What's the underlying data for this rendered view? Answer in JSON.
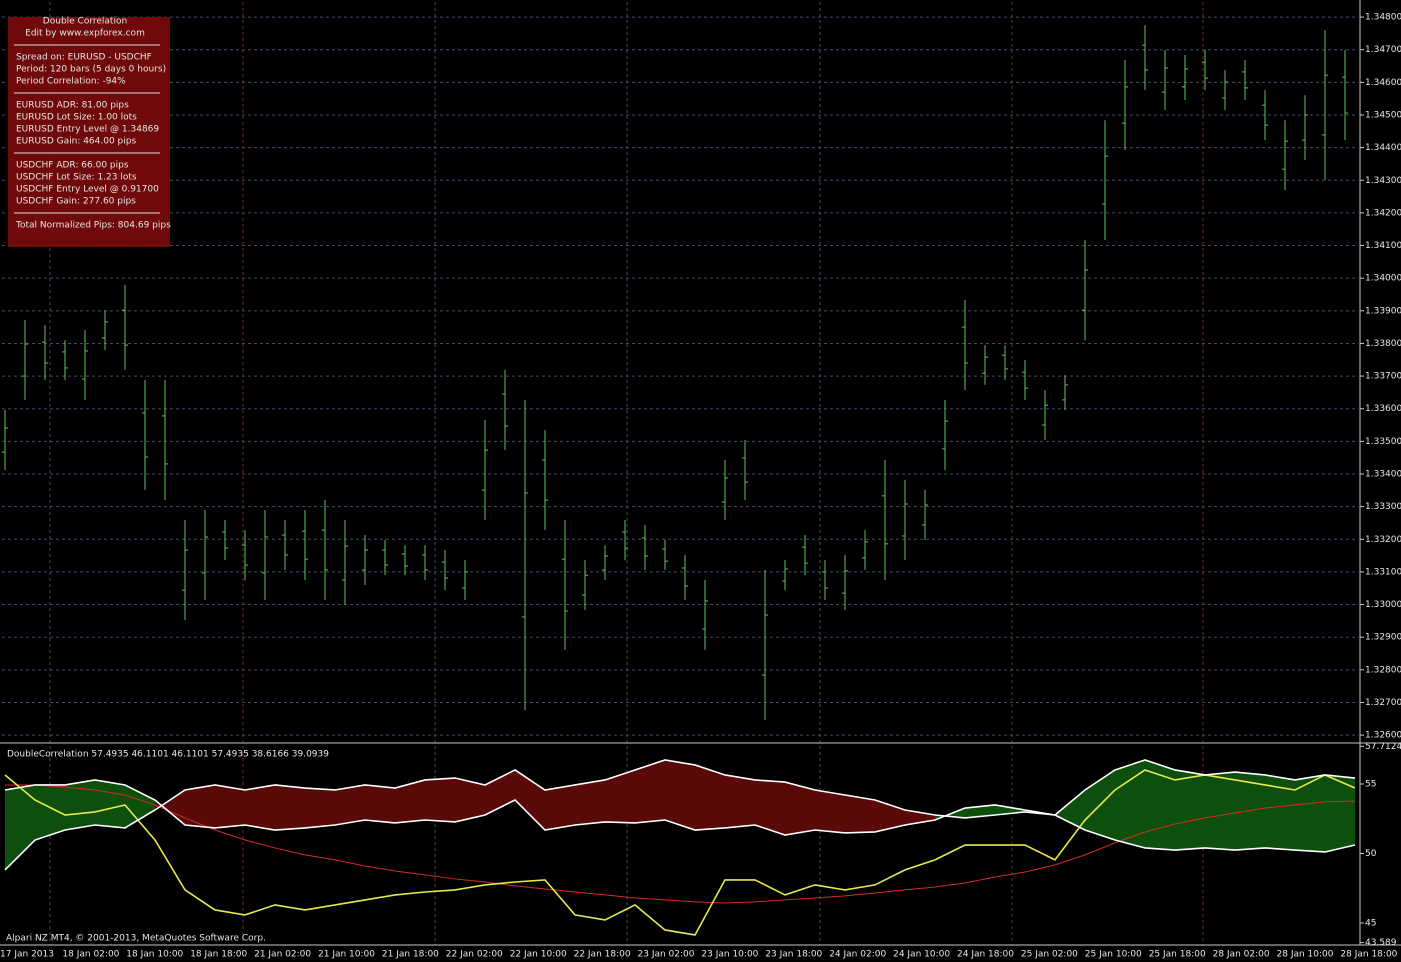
{
  "info_panel": {
    "title": "Double Correlation",
    "subtitle": "Edit by www.expforex.com",
    "sections": [
      [
        "Spread on: EURUSD - USDCHF",
        "Period: 120 bars (5 days 0 hours)",
        "Period Correlation: -94%"
      ],
      [
        "EURUSD ADR: 81.00   pips",
        "EURUSD Lot Size: 1.00 lots",
        "EURUSD Entry Level @ 1.34869",
        "EURUSD Gain: 464.00 pips"
      ],
      [
        "USDCHF ADR: 66.00   pips",
        "USDCHF Lot Size: 1.23 lots",
        "USDCHF Entry Level @ 0.91700",
        "USDCHF Gain: 277.60 pips"
      ],
      [
        "Total Normalized Pips: 804.69 pips"
      ]
    ]
  },
  "footer": "Alpari NZ MT4, © 2001-2013, MetaQuotes Software Corp.",
  "chart_data": [
    {
      "type": "ohlc",
      "color": "#5fc35f",
      "grid": true,
      "ylim": [
        1.32585,
        1.34837
      ],
      "yticks": [
        {
          "value": 1.348,
          "label": "1.34800"
        },
        {
          "value": 1.347,
          "label": "1.34700"
        },
        {
          "value": 1.346,
          "label": "1.34600"
        },
        {
          "value": 1.345,
          "label": "1.34500"
        },
        {
          "value": 1.344,
          "label": "1.34400"
        },
        {
          "value": 1.343,
          "label": "1.34300"
        },
        {
          "value": 1.342,
          "label": "1.34200"
        },
        {
          "value": 1.341,
          "label": "1.34100"
        },
        {
          "value": 1.34,
          "label": "1.34000"
        },
        {
          "value": 1.339,
          "label": "1.33900"
        },
        {
          "value": 1.338,
          "label": "1.33800"
        },
        {
          "value": 1.337,
          "label": "1.33700"
        },
        {
          "value": 1.336,
          "label": "1.33600"
        },
        {
          "value": 1.335,
          "label": "1.33500"
        },
        {
          "value": 1.334,
          "label": "1.33400"
        },
        {
          "value": 1.333,
          "label": "1.33300"
        },
        {
          "value": 1.332,
          "label": "1.33200"
        },
        {
          "value": 1.331,
          "label": "1.33100"
        },
        {
          "value": 1.33,
          "label": "1.33000"
        },
        {
          "value": 1.329,
          "label": "1.32900"
        },
        {
          "value": 1.328,
          "label": "1.32800"
        },
        {
          "value": 1.327,
          "label": "1.32700"
        },
        {
          "value": 1.326,
          "label": "1.32600"
        }
      ],
      "open": [
        1.33467,
        1.337,
        1.33804,
        1.33774,
        1.33691,
        1.33817,
        1.33902,
        1.33587,
        1.33578,
        1.33044,
        1.33097,
        1.33222,
        1.33182,
        1.33097,
        1.33213,
        1.33225,
        1.33228,
        1.33075,
        1.33106,
        1.33167,
        1.33155,
        1.33152,
        1.3313,
        1.33051,
        1.33351,
        1.33645,
        1.32962,
        1.33443,
        1.33139,
        1.33029,
        1.33106,
        1.33222,
        1.33204,
        1.3317,
        1.33112,
        1.32925,
        1.33314,
        1.33449,
        1.32784,
        1.33072,
        1.33176,
        1.331,
        1.33035,
        1.33143,
        1.33333,
        1.3321,
        1.33244,
        1.33477,
        1.3385,
        1.33709,
        1.33764,
        1.33712,
        1.3355,
        1.33627,
        1.33902,
        1.34227,
        1.34475,
        1.34714,
        1.3457,
        1.34586,
        1.34662,
        1.34552,
        1.34632,
        1.3453,
        1.34334,
        1.34423,
        1.34439,
        1.34616
      ],
      "high": [
        1.33596,
        1.33872,
        1.33856,
        1.3381,
        1.33841,
        1.33902,
        1.33979,
        1.33688,
        1.33688,
        1.33259,
        1.3329,
        1.33259,
        1.33228,
        1.3329,
        1.33259,
        1.3329,
        1.3332,
        1.33259,
        1.33213,
        1.33198,
        1.33182,
        1.33182,
        1.33167,
        1.33136,
        1.33565,
        1.33719,
        1.33627,
        1.33535,
        1.33259,
        1.33136,
        1.33182,
        1.33259,
        1.33244,
        1.33198,
        1.33152,
        1.33075,
        1.33443,
        1.33504,
        1.33106,
        1.33136,
        1.33213,
        1.33136,
        1.33152,
        1.33228,
        1.33443,
        1.33382,
        1.33351,
        1.33627,
        1.33933,
        1.33795,
        1.33795,
        1.33749,
        1.33657,
        1.33703,
        1.34117,
        1.34484,
        1.34668,
        1.34775,
        1.34699,
        1.34684,
        1.34699,
        1.34638,
        1.34668,
        1.34576,
        1.34484,
        1.34561,
        1.3476,
        1.34699
      ],
      "low": [
        1.33412,
        1.33627,
        1.33688,
        1.33688,
        1.33627,
        1.3378,
        1.33719,
        1.33351,
        1.3332,
        1.32953,
        1.33014,
        1.33136,
        1.33075,
        1.33014,
        1.33106,
        1.33075,
        1.33014,
        1.32999,
        1.3306,
        1.3309,
        1.3309,
        1.33075,
        1.33044,
        1.33014,
        1.33259,
        1.33473,
        1.32677,
        1.33228,
        1.32861,
        1.32983,
        1.33075,
        1.33136,
        1.33106,
        1.33106,
        1.33014,
        1.32861,
        1.33259,
        1.3332,
        1.32646,
        1.33044,
        1.3309,
        1.33014,
        1.32983,
        1.33106,
        1.33075,
        1.33136,
        1.33198,
        1.33412,
        1.33657,
        1.33673,
        1.33688,
        1.33627,
        1.33504,
        1.33596,
        1.3381,
        1.34117,
        1.34393,
        1.34576,
        1.34515,
        1.34546,
        1.34576,
        1.34515,
        1.34546,
        1.34423,
        1.3427,
        1.34362,
        1.34301,
        1.34423
      ],
      "close": [
        1.33541,
        1.33798,
        1.3374,
        1.33725,
        1.33777,
        1.33866,
        1.33795,
        1.33452,
        1.33431,
        1.33167,
        1.33207,
        1.33173,
        1.33121,
        1.33207,
        1.33152,
        1.33139,
        1.33106,
        1.33179,
        1.33167,
        1.33121,
        1.33118,
        1.33106,
        1.33081,
        1.331,
        1.33473,
        1.33547,
        1.33342,
        1.3332,
        1.3298,
        1.3309,
        1.33149,
        1.33173,
        1.33149,
        1.33133,
        1.33057,
        1.33011,
        1.33388,
        1.33375,
        1.32968,
        1.33109,
        1.33127,
        1.33051,
        1.33103,
        1.33192,
        1.33186,
        1.33308,
        1.33305,
        1.33562,
        1.3374,
        1.33758,
        1.33722,
        1.33663,
        1.33611,
        1.33673,
        1.34025,
        1.34374,
        1.34586,
        1.34638,
        1.34644,
        1.34641,
        1.34613,
        1.34601,
        1.34583,
        1.34469,
        1.3442,
        1.345,
        1.34622,
        1.34506
      ]
    },
    {
      "type": "line",
      "title": "DoubleCorrelation 57.4935 46.1101 46.1101 57.4935 38.6166 39.0939",
      "ylim": [
        43.417,
        57.806
      ],
      "yticks": [
        57.7124,
        55,
        50,
        45,
        43.589
      ],
      "fill": {
        "up": "#0d4f0d",
        "down": "#5a0909"
      },
      "x_labels": [
        "17 Jan 2013",
        "18 Jan 02:00",
        "18 Jan 10:00",
        "18 Jan 18:00",
        "21 Jan 02:00",
        "21 Jan 10:00",
        "21 Jan 18:00",
        "22 Jan 02:00",
        "22 Jan 10:00",
        "22 Jan 18:00",
        "23 Jan 02:00",
        "23 Jan 10:00",
        "23 Jan 18:00",
        "24 Jan 02:00",
        "24 Jan 10:00",
        "24 Jan 18:00",
        "25 Jan 02:00",
        "25 Jan 10:00",
        "25 Jan 18:00",
        "28 Jan 02:00",
        "28 Jan 10:00",
        "28 Jan 18:00"
      ],
      "series": [
        {
          "color": "#ffffff",
          "values": [
            54.57,
            54.93,
            54.93,
            55.29,
            54.93,
            53.85,
            52.05,
            51.84,
            52.05,
            51.69,
            51.84,
            52.05,
            52.41,
            52.2,
            52.41,
            52.27,
            52.77,
            53.85,
            51.69,
            52.05,
            52.27,
            52.2,
            52.41,
            51.69,
            51.84,
            52.05,
            51.33,
            51.69,
            51.48,
            51.55,
            52.05,
            52.41,
            53.27,
            53.49,
            53.13,
            52.77,
            54.57,
            56.01,
            56.73,
            56.01,
            55.65,
            55.86,
            55.65,
            55.29,
            55.65,
            55.43
          ]
        },
        {
          "color": "#ffffff",
          "values": [
            48.82,
            50.97,
            51.69,
            52.05,
            51.84,
            53.13,
            54.57,
            54.93,
            54.57,
            54.93,
            54.71,
            54.57,
            54.93,
            54.71,
            55.29,
            55.43,
            54.93,
            56.01,
            54.57,
            54.93,
            55.29,
            56.01,
            56.73,
            56.37,
            55.65,
            55.29,
            55.14,
            54.57,
            54.21,
            53.85,
            53.13,
            52.77,
            52.56,
            52.77,
            52.99,
            52.77,
            51.69,
            50.97,
            50.4,
            50.25,
            50.4,
            50.25,
            50.4,
            50.25,
            50.11,
            50.61
          ]
        },
        {
          "color": "#e8e84a",
          "values": [
            55.65,
            53.85,
            52.77,
            52.99,
            53.49,
            50.97,
            47.38,
            45.94,
            45.58,
            46.3,
            45.94,
            46.3,
            46.66,
            47.02,
            47.23,
            47.38,
            47.74,
            47.95,
            48.1,
            45.58,
            45.22,
            46.3,
            44.5,
            44.14,
            48.1,
            48.1,
            47.02,
            47.74,
            47.38,
            47.74,
            48.82,
            49.54,
            50.61,
            50.61,
            50.61,
            49.54,
            52.41,
            54.57,
            56.01,
            55.29,
            55.65,
            55.29,
            54.93,
            54.57,
            55.65,
            54.71
          ]
        },
        {
          "color": "#d42a2a",
          "values": [
            54.93,
            54.93,
            54.78,
            54.57,
            54.21,
            53.49,
            52.56,
            51.69,
            50.97,
            50.4,
            49.9,
            49.54,
            49.1,
            48.74,
            48.46,
            48.17,
            47.95,
            47.67,
            47.45,
            47.23,
            47.02,
            46.8,
            46.66,
            46.52,
            46.44,
            46.52,
            46.66,
            46.8,
            46.95,
            47.16,
            47.38,
            47.59,
            47.88,
            48.31,
            48.67,
            49.18,
            49.9,
            50.76,
            51.55,
            52.12,
            52.56,
            52.91,
            53.27,
            53.49,
            53.71,
            53.78
          ]
        }
      ]
    }
  ]
}
